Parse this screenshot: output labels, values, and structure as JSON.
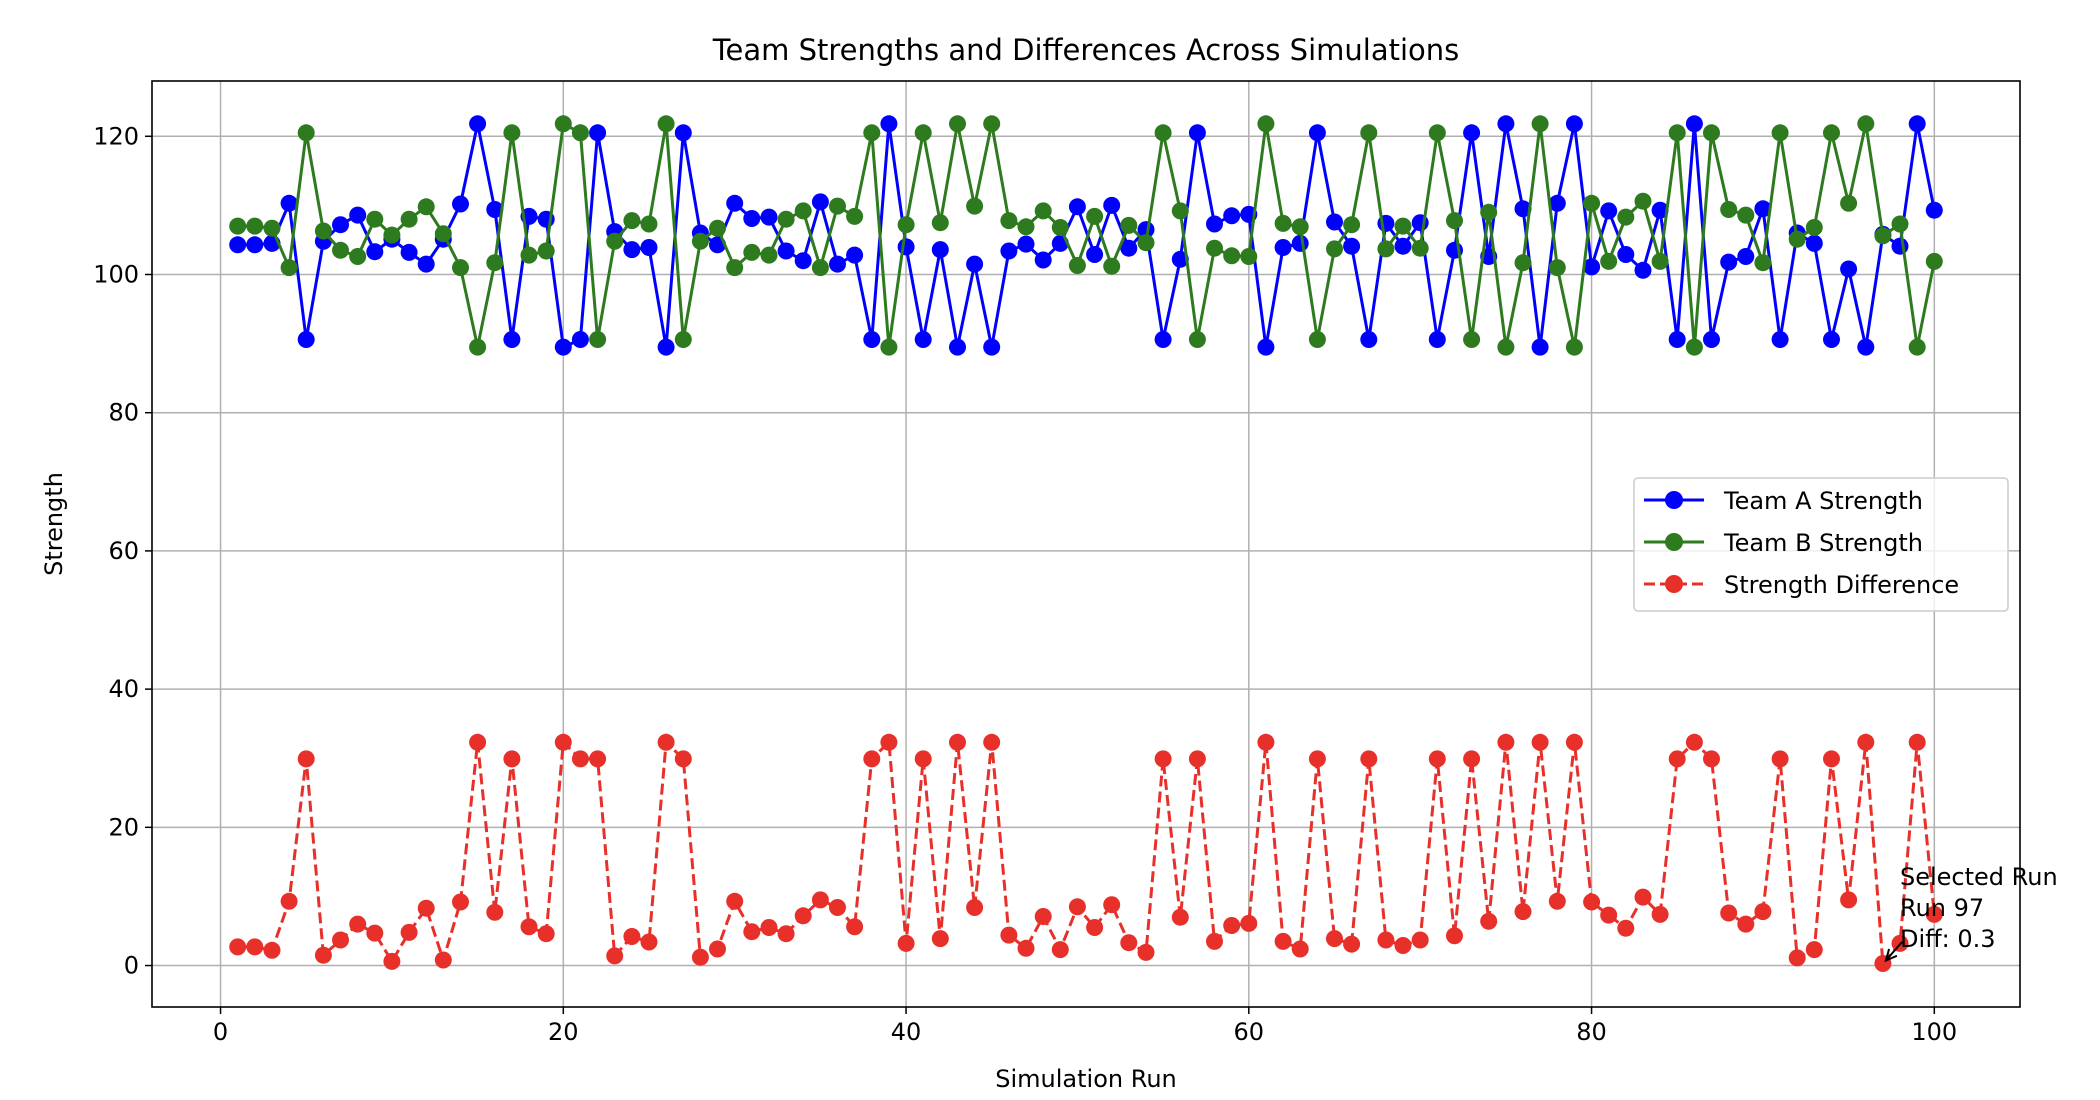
{
  "chart_data": {
    "type": "line",
    "title": "Team Strengths and Differences Across Simulations",
    "xlabel": "Simulation Run",
    "ylabel": "Strength",
    "xlim": [
      -4,
      105
    ],
    "ylim": [
      -6,
      128
    ],
    "xticks": [
      0,
      20,
      40,
      60,
      80,
      100
    ],
    "yticks": [
      0,
      20,
      40,
      60,
      80,
      100,
      120
    ],
    "grid": true,
    "legend_position": "center-right",
    "x": [
      1,
      2,
      3,
      4,
      5,
      6,
      7,
      8,
      9,
      10,
      11,
      12,
      13,
      14,
      15,
      16,
      17,
      18,
      19,
      20,
      21,
      22,
      23,
      24,
      25,
      26,
      27,
      28,
      29,
      30,
      31,
      32,
      33,
      34,
      35,
      36,
      37,
      38,
      39,
      40,
      41,
      42,
      43,
      44,
      45,
      46,
      47,
      48,
      49,
      50,
      51,
      52,
      53,
      54,
      55,
      56,
      57,
      58,
      59,
      60,
      61,
      62,
      63,
      64,
      65,
      66,
      67,
      68,
      69,
      70,
      71,
      72,
      73,
      74,
      75,
      76,
      77,
      78,
      79,
      80,
      81,
      82,
      83,
      84,
      85,
      86,
      87,
      88,
      89,
      90,
      91,
      92,
      93,
      94,
      95,
      96,
      97,
      98,
      99,
      100
    ],
    "series": [
      {
        "name": "Team A Strength",
        "color": "#0000ff",
        "style": "solid",
        "values": [
          104.3,
          104.3,
          104.5,
          110.3,
          90.6,
          104.8,
          107.2,
          108.6,
          103.3,
          105.1,
          103.2,
          101.5,
          105.1,
          110.2,
          121.8,
          109.4,
          90.6,
          108.4,
          108.0,
          89.5,
          90.6,
          120.5,
          106.2,
          103.6,
          103.9,
          89.5,
          120.5,
          106.0,
          104.3,
          110.3,
          108.1,
          108.3,
          103.4,
          102.0,
          110.5,
          101.5,
          102.8,
          90.6,
          121.8,
          104.0,
          90.6,
          103.6,
          89.5,
          101.5,
          89.5,
          103.4,
          104.4,
          102.1,
          104.5,
          109.8,
          102.9,
          110.0,
          103.8,
          106.5,
          90.6,
          102.2,
          120.5,
          107.3,
          108.5,
          108.7,
          89.5,
          103.9,
          104.5,
          120.5,
          107.6,
          104.1,
          90.6,
          107.4,
          104.1,
          107.5,
          90.6,
          103.5,
          120.5,
          102.6,
          121.8,
          109.5,
          89.5,
          110.3,
          121.8,
          101.1,
          109.2,
          102.9,
          100.6,
          109.3,
          90.6,
          121.8,
          90.6,
          101.8,
          102.6,
          109.5,
          90.6,
          106.0,
          104.5,
          90.6,
          100.8,
          89.5,
          105.8,
          104.1,
          121.8,
          109.3
        ]
      },
      {
        "name": "Team B Strength",
        "color": "#2e7a1e",
        "style": "solid",
        "values": [
          107.0,
          107.0,
          106.7,
          101.0,
          120.5,
          106.3,
          103.5,
          102.6,
          108.0,
          105.7,
          108.0,
          109.8,
          105.9,
          101.0,
          89.5,
          101.7,
          120.5,
          102.8,
          103.4,
          121.8,
          120.5,
          90.6,
          104.8,
          107.8,
          107.3,
          121.8,
          90.6,
          104.8,
          106.7,
          101.0,
          103.2,
          102.8,
          108.0,
          109.2,
          101.0,
          109.9,
          108.4,
          120.5,
          89.5,
          107.2,
          120.5,
          107.5,
          121.8,
          109.9,
          121.8,
          107.8,
          106.9,
          109.2,
          106.8,
          101.3,
          108.4,
          101.2,
          107.1,
          104.6,
          120.5,
          109.2,
          90.6,
          103.8,
          102.7,
          102.6,
          121.8,
          107.4,
          106.9,
          90.6,
          103.7,
          107.2,
          120.5,
          103.7,
          107.0,
          103.8,
          120.5,
          107.8,
          90.6,
          109.0,
          89.5,
          101.7,
          121.8,
          101.0,
          89.5,
          110.3,
          101.9,
          108.3,
          110.6,
          101.9,
          120.5,
          89.5,
          120.5,
          109.4,
          108.6,
          101.7,
          120.5,
          105.1,
          106.8,
          120.5,
          110.3,
          121.8,
          105.6,
          107.3,
          89.5,
          101.9
        ]
      },
      {
        "name": "Strength Difference",
        "color": "#e8302a",
        "style": "dashed",
        "values": [
          2.7,
          2.7,
          2.2,
          9.3,
          29.9,
          1.5,
          3.7,
          6.0,
          4.7,
          0.6,
          4.8,
          8.3,
          0.8,
          9.2,
          32.3,
          7.7,
          29.9,
          5.6,
          4.6,
          32.3,
          29.9,
          29.9,
          1.4,
          4.2,
          3.4,
          32.3,
          29.9,
          1.2,
          2.4,
          9.3,
          4.9,
          5.5,
          4.6,
          7.2,
          9.5,
          8.4,
          5.6,
          29.9,
          32.3,
          3.2,
          29.9,
          3.9,
          32.3,
          8.4,
          32.3,
          4.4,
          2.5,
          7.1,
          2.3,
          8.5,
          5.5,
          8.8,
          3.3,
          1.9,
          29.9,
          7.0,
          29.9,
          3.5,
          5.8,
          6.1,
          32.3,
          3.5,
          2.4,
          29.9,
          3.9,
          3.1,
          29.9,
          3.7,
          2.9,
          3.7,
          29.9,
          4.3,
          29.9,
          6.4,
          32.3,
          7.8,
          32.3,
          9.3,
          32.3,
          9.2,
          7.3,
          5.4,
          9.9,
          7.4,
          29.9,
          32.3,
          29.9,
          7.6,
          6.0,
          7.8,
          29.9,
          1.1,
          2.3,
          29.9,
          9.5,
          32.3,
          0.3,
          3.2,
          32.3,
          7.4
        ]
      }
    ],
    "annotation": {
      "lines": [
        "Selected Run",
        "Run 97",
        "Diff: 0.3"
      ],
      "x": 97,
      "y": 0.3
    }
  }
}
